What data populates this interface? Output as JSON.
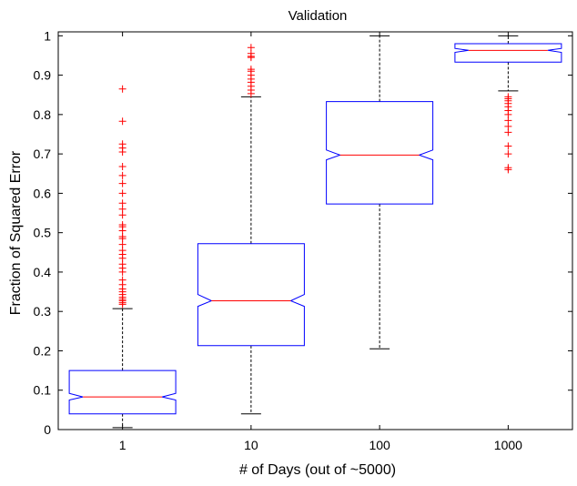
{
  "chart_data": {
    "type": "boxplot",
    "notched": true,
    "title": "Validation",
    "xlabel": "# of Days (out of ~5000)",
    "ylabel": "Fraction of Squared Error",
    "categories": [
      "1",
      "10",
      "100",
      "1000"
    ],
    "ylim": [
      0,
      1.01
    ],
    "yticks": [
      "0",
      "0.1",
      "0.2",
      "0.3",
      "0.4",
      "0.5",
      "0.6",
      "0.7",
      "0.8",
      "0.9",
      "1"
    ],
    "grid": false,
    "colors": {
      "box": "#0000ff",
      "median": "#ff0000",
      "outlier": "#ff0000",
      "whisker": "#000000"
    },
    "boxes": [
      {
        "category": "1",
        "whisker_low": 0.005,
        "q1": 0.04,
        "median": 0.083,
        "q3": 0.15,
        "whisker_high": 0.307,
        "notch_low": 0.075,
        "notch_high": 0.092,
        "outliers": [
          0.318,
          0.322,
          0.327,
          0.331,
          0.336,
          0.343,
          0.35,
          0.357,
          0.368,
          0.38,
          0.4,
          0.41,
          0.42,
          0.435,
          0.445,
          0.455,
          0.47,
          0.485,
          0.49,
          0.505,
          0.515,
          0.52,
          0.545,
          0.56,
          0.575,
          0.6,
          0.625,
          0.645,
          0.668,
          0.705,
          0.715,
          0.725,
          0.783,
          0.865
        ]
      },
      {
        "category": "10",
        "whisker_low": 0.04,
        "q1": 0.213,
        "median": 0.327,
        "q3": 0.472,
        "whisker_high": 0.845,
        "notch_low": 0.313,
        "notch_high": 0.343,
        "outliers": [
          0.853,
          0.862,
          0.872,
          0.882,
          0.89,
          0.9,
          0.91,
          0.915,
          0.945,
          0.948,
          0.955,
          0.97
        ]
      },
      {
        "category": "100",
        "whisker_low": 0.205,
        "q1": 0.573,
        "median": 0.697,
        "q3": 0.833,
        "whisker_high": 1.0,
        "notch_low": 0.685,
        "notch_high": 0.71,
        "outliers": []
      },
      {
        "category": "1000",
        "whisker_low": 0.86,
        "q1": 0.933,
        "median": 0.963,
        "q3": 0.98,
        "whisker_high": 1.0,
        "notch_low": 0.958,
        "notch_high": 0.968,
        "outliers": [
          0.66,
          0.665,
          0.7,
          0.72,
          0.755,
          0.77,
          0.785,
          0.8,
          0.81,
          0.82,
          0.828,
          0.835,
          0.84,
          0.845
        ]
      }
    ]
  }
}
